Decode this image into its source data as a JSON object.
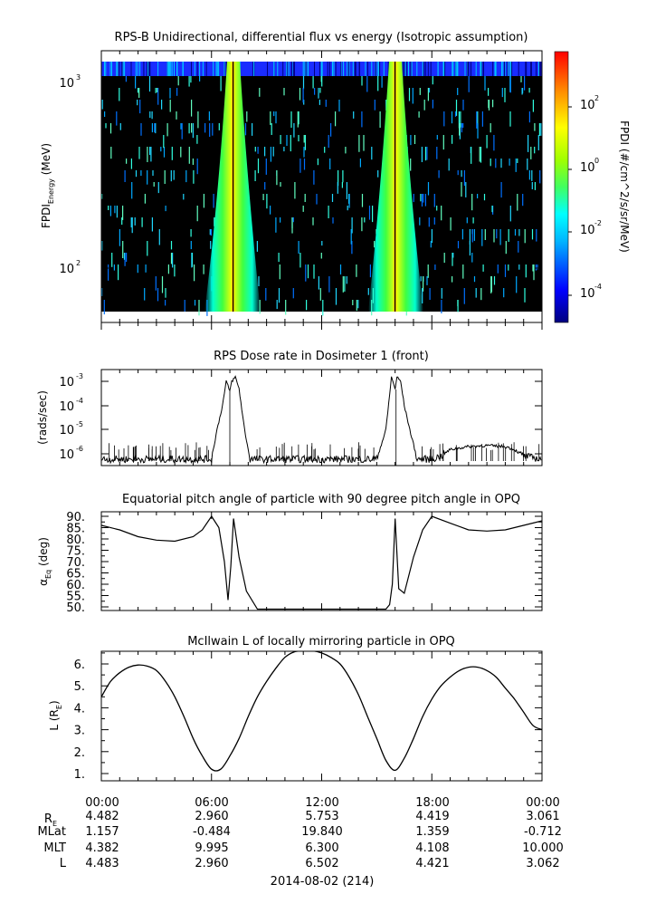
{
  "panels": [
    {
      "title": "RPS-B  Unidirectional, differential flux vs energy (Isotropic assumption)",
      "ylabel": "FPDI",
      "ylabel_sub": "Energy",
      "ylabel_unit": " (MeV)",
      "yticks": [
        {
          "base": "10",
          "exp": "3",
          "value": 1000
        },
        {
          "base": "10",
          "exp": "2",
          "value": 100
        }
      ],
      "colorbar_label": "FPDI (#/cm^2/s/sr/MeV)",
      "colorbar_ticks": [
        {
          "base": "10",
          "exp": "2"
        },
        {
          "base": "10",
          "exp": "0"
        },
        {
          "base": "10",
          "exp": "-2"
        },
        {
          "base": "10",
          "exp": "-4"
        }
      ]
    },
    {
      "title": "RPS  Dose rate in Dosimeter 1 (front)",
      "ylabel": "(rads/sec)",
      "yticks": [
        {
          "base": "10",
          "exp": "-3"
        },
        {
          "base": "10",
          "exp": "-4"
        },
        {
          "base": "10",
          "exp": "-5"
        },
        {
          "base": "10",
          "exp": "-6"
        }
      ]
    },
    {
      "title": "Equatorial pitch angle of particle with 90 degree pitch angle in OPQ",
      "ylabel": "α",
      "ylabel_sub": "Eq",
      "ylabel_unit": " (deg)",
      "yticks": [
        "90.",
        "85.",
        "80.",
        "75.",
        "70.",
        "65.",
        "60.",
        "55.",
        "50."
      ]
    },
    {
      "title": "McIlwain L of locally mirroring particle in OPQ",
      "ylabel": "L (R",
      "ylabel_sub": "E",
      "ylabel_unit": ")",
      "yticks": [
        "6.",
        "5.",
        "4.",
        "3.",
        "2.",
        "1."
      ]
    }
  ],
  "xaxis": {
    "tick_labels": [
      "00:00",
      "06:00",
      "12:00",
      "18:00",
      "00:00"
    ],
    "date_label": "2014-08-02 (214)"
  },
  "ephemeris": {
    "rows": [
      {
        "label": "R",
        "label_sub": "E",
        "values": [
          "4.482",
          "2.960",
          "5.753",
          "4.419",
          "3.061"
        ]
      },
      {
        "label": "MLat",
        "label_sub": "",
        "values": [
          "1.157",
          "-0.484",
          "19.840",
          "1.359",
          "-0.712"
        ]
      },
      {
        "label": "MLT",
        "label_sub": "",
        "values": [
          "4.382",
          "9.995",
          "6.300",
          "4.108",
          "10.000"
        ]
      },
      {
        "label": "L",
        "label_sub": "",
        "values": [
          "4.483",
          "2.960",
          "6.502",
          "4.421",
          "3.062"
        ]
      }
    ]
  },
  "chart_data": [
    {
      "type": "heatmap",
      "title": "RPS-B  Unidirectional, differential flux vs energy (Isotropic assumption)",
      "x_range_hours": [
        0,
        24
      ],
      "y_scale": "log",
      "ylim": [
        55,
        1400
      ],
      "colorbar": {
        "scale": "log",
        "range": [
          1e-05,
          1000
        ],
        "colormap": "rainbow (blue-cyan-green-yellow-red)"
      },
      "features": [
        {
          "description": "radiation belt passage",
          "center_hour": 7.05,
          "peak_flux": 1.0
        },
        {
          "description": "radiation belt passage",
          "center_hour": 16.05,
          "peak_flux": 1.0
        }
      ]
    },
    {
      "type": "line",
      "title": "RPS  Dose rate in Dosimeter 1 (front)",
      "y_scale": "log",
      "ylim": [
        3.5e-07,
        0.002
      ],
      "x": [
        0,
        1,
        2,
        3,
        4,
        5,
        6,
        6.3,
        6.6,
        6.8,
        7.0,
        7.1,
        7.3,
        7.5,
        7.8,
        8.1,
        9,
        10,
        11,
        12,
        13,
        14,
        15,
        15.5,
        15.8,
        16.0,
        16.1,
        16.3,
        16.5,
        16.8,
        17.2,
        18,
        18.5,
        19,
        20,
        21,
        22,
        22.5,
        23,
        24
      ],
      "y": [
        6e-07,
        6e-07,
        6e-07,
        6e-07,
        6e-07,
        6e-07,
        6e-07,
        1e-05,
        0.0001,
        0.001,
        0.0004,
        0.001,
        0.0015,
        0.0005,
        1e-05,
        6e-07,
        6e-07,
        6e-07,
        6e-07,
        6e-07,
        6e-07,
        6e-07,
        6e-07,
        1e-05,
        0.0015,
        0.0005,
        0.0015,
        0.001,
        0.0001,
        1e-05,
        6e-07,
        6e-07,
        8e-07,
        1.5e-06,
        2e-06,
        2.2e-06,
        2e-06,
        1.5e-06,
        8e-07,
        6e-07
      ]
    },
    {
      "type": "line",
      "title": "Equatorial pitch angle of particle with 90 degree pitch angle in OPQ",
      "ylim": [
        49,
        91
      ],
      "x": [
        0,
        1,
        2,
        3,
        4,
        5,
        5.5,
        6.0,
        6.4,
        6.7,
        6.9,
        7.05,
        7.2,
        7.5,
        7.9,
        8.5,
        9,
        10,
        11,
        12,
        13,
        14,
        14.5,
        15.0,
        15.3,
        15.5,
        15.7,
        15.85,
        16.0,
        16.2,
        16.5,
        17.0,
        17.5,
        18,
        19,
        20,
        21,
        22,
        23,
        24
      ],
      "y": [
        86,
        84,
        81,
        79.5,
        79,
        81,
        84,
        90,
        85,
        70,
        53,
        68,
        89,
        72,
        57,
        49,
        49,
        49,
        49,
        49,
        49,
        49,
        49,
        49,
        49,
        49,
        51,
        60,
        89,
        58,
        56,
        72,
        84,
        90,
        87,
        84,
        83.5,
        84,
        86,
        88
      ]
    },
    {
      "type": "line",
      "title": "McIlwain L of locally mirroring particle in OPQ",
      "ylim": [
        0.7,
        6.6
      ],
      "x": [
        0,
        0.5,
        1,
        1.5,
        2,
        2.5,
        3,
        3.5,
        4,
        4.5,
        5,
        5.5,
        6,
        6.5,
        7,
        7.5,
        8,
        8.5,
        9,
        9.5,
        10,
        10.5,
        11,
        11.5,
        12,
        12.5,
        13,
        13.5,
        14,
        14.5,
        15,
        15.5,
        16,
        16.5,
        17,
        17.5,
        18,
        18.5,
        19,
        19.5,
        20,
        20.5,
        21,
        21.5,
        22,
        22.5,
        23,
        23.5,
        24
      ],
      "y": [
        4.5,
        5.2,
        5.6,
        5.85,
        5.95,
        5.9,
        5.7,
        5.2,
        4.5,
        3.6,
        2.6,
        1.8,
        1.2,
        1.2,
        1.8,
        2.6,
        3.6,
        4.5,
        5.2,
        5.8,
        6.3,
        6.55,
        6.6,
        6.6,
        6.5,
        6.3,
        6.0,
        5.4,
        4.6,
        3.6,
        2.6,
        1.6,
        1.15,
        1.7,
        2.6,
        3.6,
        4.4,
        5.0,
        5.4,
        5.7,
        5.85,
        5.85,
        5.7,
        5.4,
        4.9,
        4.4,
        3.8,
        3.2,
        3.0
      ]
    }
  ]
}
